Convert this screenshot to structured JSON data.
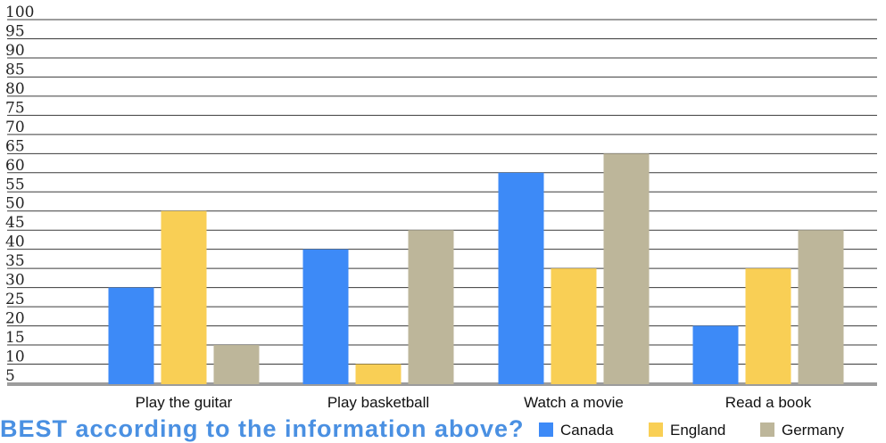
{
  "chart_data": {
    "type": "bar",
    "categories": [
      "Play the guitar",
      "Play basketball",
      "Watch a movie",
      "Read a book"
    ],
    "series": [
      {
        "name": "Canada",
        "color": "#3d8af7",
        "values": [
          30,
          40,
          60,
          20
        ]
      },
      {
        "name": "England",
        "color": "#f9cf55",
        "values": [
          50,
          10,
          35,
          35
        ]
      },
      {
        "name": "Germany",
        "color": "#bdb69a",
        "values": [
          15,
          45,
          65,
          45
        ]
      }
    ],
    "y_ticks": [
      "100",
      "95",
      "90",
      "85",
      "80",
      "75",
      "70",
      "65",
      "60",
      "55",
      "50",
      "45",
      "40",
      "35",
      "30",
      "25",
      "20",
      "15",
      "10",
      "5"
    ],
    "ylim": [
      5,
      100
    ],
    "grid": true,
    "legend_position": "bottom-right",
    "title": "",
    "xlabel": "",
    "ylabel": ""
  },
  "footer_text": "BEST according to the information above?"
}
